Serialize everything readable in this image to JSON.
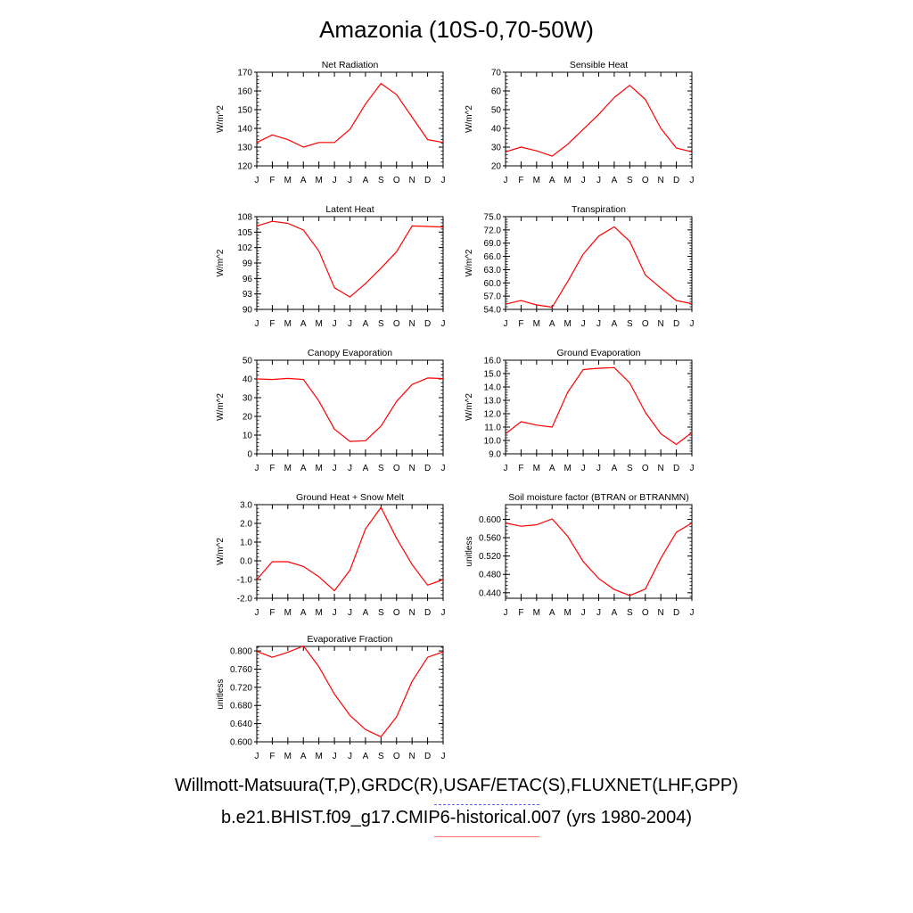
{
  "title": "Amazonia (10S-0,70-50W)",
  "footer": {
    "line1": "Willmott-Matsuura(T,P),GRDC(R),USAF/ETAC(S),FLUXNET(LHF,GPP)",
    "line2": "b.e21.BHIST.f09_g17.CMIP6-historical.007 (yrs 1980-2004)"
  },
  "colors": {
    "series": "#ff0000",
    "obs_legend": "#6060ff",
    "model_legend": "#ff7070"
  },
  "chart_data": [
    {
      "type": "line",
      "title": "Net Radiation",
      "ylabel": "W/m^2",
      "ylim": [
        120,
        170
      ],
      "yticks": [
        "120",
        "130",
        "140",
        "150",
        "160",
        "170"
      ],
      "categories": [
        "J",
        "F",
        "M",
        "A",
        "M",
        "J",
        "J",
        "A",
        "S",
        "O",
        "N",
        "D",
        "J"
      ],
      "values": [
        132.5,
        136.5,
        134.0,
        130.0,
        132.5,
        132.5,
        139.5,
        153.0,
        164.0,
        158.0,
        146.0,
        134.0,
        132.5
      ]
    },
    {
      "type": "line",
      "title": "Sensible Heat",
      "ylabel": "W/m^2",
      "ylim": [
        20,
        70
      ],
      "yticks": [
        "20",
        "30",
        "40",
        "50",
        "60",
        "70"
      ],
      "categories": [
        "J",
        "F",
        "M",
        "A",
        "M",
        "J",
        "J",
        "A",
        "S",
        "O",
        "N",
        "D",
        "J"
      ],
      "values": [
        27.5,
        30.0,
        28.0,
        25.2,
        31.5,
        39.5,
        47.5,
        56.5,
        63.0,
        55.5,
        40.0,
        29.5,
        27.5
      ]
    },
    {
      "type": "line",
      "title": "Latent Heat",
      "ylabel": "W/m^2",
      "ylim": [
        90,
        108
      ],
      "yticks": [
        "90",
        "93",
        "96",
        "99",
        "102",
        "105",
        "108"
      ],
      "categories": [
        "J",
        "F",
        "M",
        "A",
        "M",
        "J",
        "J",
        "A",
        "S",
        "O",
        "N",
        "D",
        "J"
      ],
      "values": [
        106.2,
        107.1,
        106.7,
        105.4,
        101.3,
        94.2,
        92.4,
        95.0,
        98.0,
        101.2,
        106.2,
        106.1,
        106.0
      ]
    },
    {
      "type": "line",
      "title": "Transpiration",
      "ylabel": "W/m^2",
      "ylim": [
        54.0,
        75.0
      ],
      "yticks": [
        "54.0",
        "57.0",
        "60.0",
        "63.0",
        "66.0",
        "69.0",
        "72.0",
        "75.0"
      ],
      "categories": [
        "J",
        "F",
        "M",
        "A",
        "M",
        "J",
        "J",
        "A",
        "S",
        "O",
        "N",
        "D",
        "J"
      ],
      "values": [
        55.2,
        56.0,
        55.0,
        54.5,
        60.3,
        66.5,
        70.6,
        72.7,
        69.4,
        61.8,
        58.8,
        56.0,
        55.3
      ]
    },
    {
      "type": "line",
      "title": "Canopy Evaporation",
      "ylabel": "W/m^2",
      "ylim": [
        0,
        50
      ],
      "yticks": [
        "0",
        "10",
        "20",
        "30",
        "40",
        "50"
      ],
      "categories": [
        "J",
        "F",
        "M",
        "A",
        "M",
        "J",
        "J",
        "A",
        "S",
        "O",
        "N",
        "D",
        "J"
      ],
      "values": [
        40.0,
        39.7,
        40.3,
        39.7,
        28.2,
        13.2,
        6.6,
        7.0,
        14.8,
        28.0,
        37.0,
        40.5,
        40.2
      ]
    },
    {
      "type": "line",
      "title": "Ground Evaporation",
      "ylabel": "W/m^2",
      "ylim": [
        9.0,
        16.0
      ],
      "yticks": [
        "9.0",
        "10.0",
        "11.0",
        "12.0",
        "13.0",
        "14.0",
        "15.0",
        "16.0"
      ],
      "categories": [
        "J",
        "F",
        "M",
        "A",
        "M",
        "J",
        "J",
        "A",
        "S",
        "O",
        "N",
        "D",
        "J"
      ],
      "values": [
        10.5,
        11.4,
        11.15,
        11.0,
        13.6,
        15.3,
        15.4,
        15.45,
        14.3,
        12.1,
        10.5,
        9.7,
        10.6
      ]
    },
    {
      "type": "line",
      "title": "Ground Heat + Snow Melt",
      "ylabel": "W/m^2",
      "ylim": [
        -2.0,
        3.0
      ],
      "yticks": [
        "-2.0",
        "-1.0",
        "0.0",
        "1.0",
        "2.0",
        "3.0"
      ],
      "categories": [
        "J",
        "F",
        "M",
        "A",
        "M",
        "J",
        "J",
        "A",
        "S",
        "O",
        "N",
        "D",
        "J"
      ],
      "values": [
        -1.0,
        -0.05,
        -0.05,
        -0.3,
        -0.85,
        -1.6,
        -0.5,
        1.7,
        2.85,
        1.2,
        -0.2,
        -1.3,
        -1.0
      ]
    },
    {
      "type": "line",
      "title": "Soil moisture factor (BTRAN or BTRANMN)",
      "ylabel": "unitless",
      "ylim": [
        0.428,
        0.632
      ],
      "yticks": [
        "0.440",
        "0.480",
        "0.520",
        "0.560",
        "0.600"
      ],
      "ytick_values": [
        0.44,
        0.48,
        0.52,
        0.56,
        0.6
      ],
      "categories": [
        "J",
        "F",
        "M",
        "A",
        "M",
        "J",
        "J",
        "A",
        "S",
        "O",
        "N",
        "D",
        "J"
      ],
      "values": [
        0.592,
        0.585,
        0.588,
        0.601,
        0.563,
        0.508,
        0.471,
        0.447,
        0.434,
        0.448,
        0.515,
        0.572,
        0.592
      ]
    },
    {
      "type": "line",
      "title": "Evaporative Fraction",
      "ylabel": "unitless",
      "ylim": [
        0.6,
        0.81
      ],
      "yticks": [
        "0.600",
        "0.640",
        "0.680",
        "0.720",
        "0.760",
        "0.800"
      ],
      "ytick_values": [
        0.6,
        0.64,
        0.68,
        0.72,
        0.76,
        0.8
      ],
      "categories": [
        "J",
        "F",
        "M",
        "A",
        "M",
        "J",
        "J",
        "A",
        "S",
        "O",
        "N",
        "D",
        "J"
      ],
      "values": [
        0.799,
        0.786,
        0.797,
        0.811,
        0.765,
        0.705,
        0.658,
        0.627,
        0.611,
        0.655,
        0.733,
        0.786,
        0.798
      ]
    }
  ]
}
